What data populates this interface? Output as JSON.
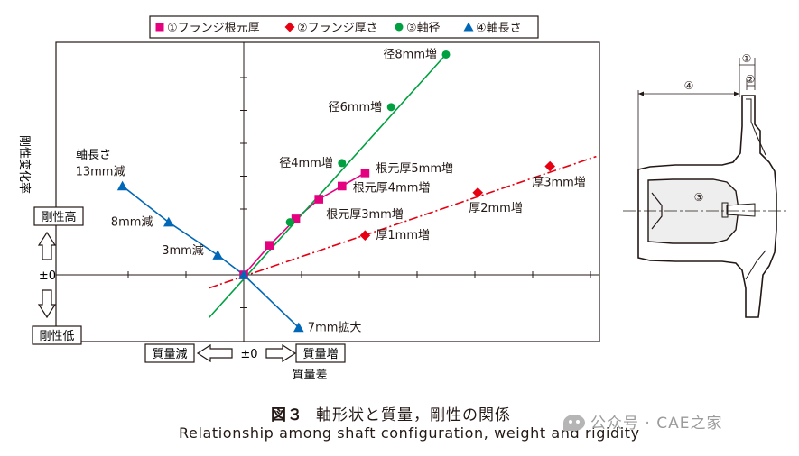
{
  "chart_data": {
    "type": "line",
    "legend": {
      "placement": "top",
      "entries": [
        "①フランジ根元厚",
        "②フランジ厚さ",
        "③軸径",
        "④軸長さ"
      ]
    },
    "xlabel": "質量差",
    "ylabel": "剛性変化率",
    "x_ticks": {
      "origin_label": "±0",
      "negative_label": "質量減",
      "positive_label": "質量増"
    },
    "y_ticks": {
      "origin_label": "±0",
      "positive_label": "剛性高",
      "negative_label": "剛性低"
    },
    "series": [
      {
        "name": "①フランジ根元厚",
        "color": "#e4007f",
        "marker": "square",
        "line": "solid",
        "points": [
          {
            "x": 0,
            "y": 0
          },
          {
            "x": 0.9,
            "y": 0.9
          },
          {
            "x": 1.8,
            "y": 1.7
          },
          {
            "x": 2.6,
            "y": 2.3,
            "label": "根元厚3mm増"
          },
          {
            "x": 3.4,
            "y": 2.7,
            "label": "根元厚4mm増"
          },
          {
            "x": 4.2,
            "y": 3.1,
            "label": "根元厚5mm増"
          }
        ]
      },
      {
        "name": "②フランジ厚さ",
        "color": "#e60012",
        "marker": "diamond",
        "line": "dash-dot",
        "points": [
          {
            "x": 4.2,
            "y": 1.2,
            "label": "厚1mm増"
          },
          {
            "x": 8.1,
            "y": 2.5,
            "label": "厚2mm増"
          },
          {
            "x": 10.6,
            "y": 3.3,
            "label": "厚3mm増"
          }
        ],
        "trend_line": [
          {
            "x": -1.2,
            "y": -0.4
          },
          {
            "x": 12.2,
            "y": 3.6
          }
        ]
      },
      {
        "name": "③軸径",
        "color": "#00a040",
        "marker": "circle",
        "line": "solid",
        "points": [
          {
            "x": 0,
            "y": 0
          },
          {
            "x": 1.6,
            "y": 1.6
          },
          {
            "x": 3.4,
            "y": 3.4,
            "label": "径4mm増"
          },
          {
            "x": 5.1,
            "y": 5.1,
            "label": "径6mm増"
          },
          {
            "x": 7.0,
            "y": 6.7,
            "label": "径8mm増"
          }
        ],
        "trend_line": [
          {
            "x": -1.2,
            "y": -1.3
          },
          {
            "x": 7.0,
            "y": 6.7
          }
        ]
      },
      {
        "name": "④軸長さ",
        "color": "#0068b7",
        "marker": "triangle",
        "line": "solid",
        "points": [
          {
            "x": -4.2,
            "y": 2.7,
            "label": "13mm減"
          },
          {
            "x": -2.6,
            "y": 1.6,
            "label": "8mm減"
          },
          {
            "x": -0.9,
            "y": 0.6,
            "label": "3mm減"
          },
          {
            "x": 0,
            "y": 0
          },
          {
            "x": 1.9,
            "y": -1.6,
            "label": "7mm拡大"
          }
        ]
      }
    ],
    "annotations": [
      "軸長さ"
    ],
    "xlim": [
      -6,
      12.2
    ],
    "ylim": [
      -2,
      7.2
    ],
    "grid": false
  },
  "diagram": {
    "labels": [
      "①",
      "②",
      "③",
      "④"
    ]
  },
  "caption": {
    "figure_number": "図３",
    "title_jp": "軸形状と質量，剛性の関係",
    "title_en": "Relationship among shaft configuration, weight and rigidity"
  },
  "watermark": "公众号 · CAE之家"
}
